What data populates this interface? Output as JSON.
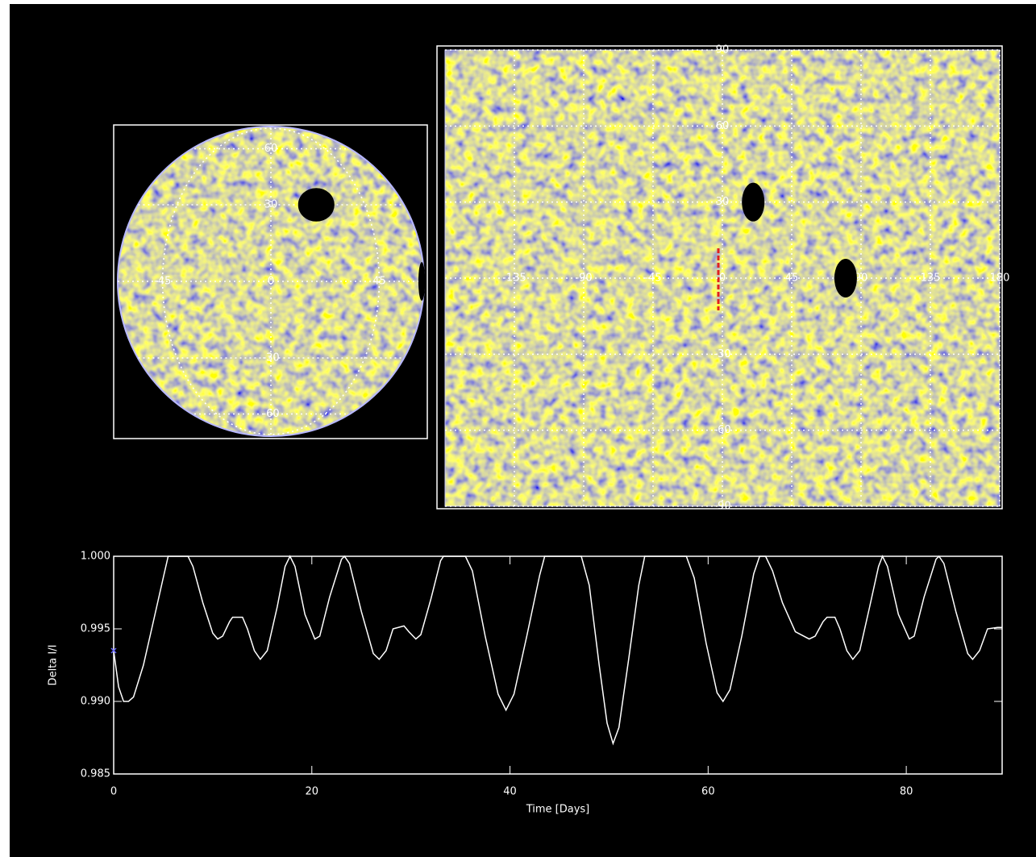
{
  "chart_data": [
    {
      "type": "globe",
      "lat_ticks": [
        60,
        30,
        0,
        -30,
        -60
      ],
      "lon_ticks": [
        -45,
        0,
        45
      ],
      "spots": {
        "lon": [
          20,
          80
        ],
        "lat": [
          30,
          0
        ]
      }
    },
    {
      "type": "map",
      "lon_ticks": [
        -135,
        -90,
        -45,
        0,
        45,
        90,
        135,
        180
      ],
      "lat_ticks": [
        90,
        60,
        30,
        -30,
        -60,
        -90
      ],
      "xlim": [
        -180,
        180
      ],
      "ylim": [
        -90,
        90
      ],
      "spots": {
        "lon": [
          20,
          80
        ],
        "lat": [
          30,
          0
        ]
      }
    },
    {
      "type": "line",
      "xlabel": "Time [Days]",
      "ylabel": "Delta I/I",
      "xlim": [
        0,
        90
      ],
      "ylim": [
        0.985,
        1.0
      ],
      "xticks": [
        0,
        20,
        40,
        60,
        80
      ],
      "yticks": [
        {
          "value": 1.0,
          "label": "1.000"
        },
        {
          "value": 0.995,
          "label": "0.995"
        },
        {
          "value": 0.99,
          "label": "0.990"
        },
        {
          "value": 0.985,
          "label": "0.985"
        }
      ],
      "color": "#ffffff",
      "marker": {
        "x": 0,
        "value": 0.9935,
        "color": "#6a6aff"
      },
      "x": [
        0,
        0.5,
        1,
        1.5,
        2,
        3,
        4,
        5,
        5.5,
        7.5,
        8,
        9,
        10,
        10.5,
        11,
        11.7,
        12,
        13,
        13.5,
        14.2,
        14.8,
        15.5,
        16.5,
        17.3,
        17.8,
        18.3,
        19.3,
        20.3,
        20.8,
        21.8,
        23,
        23.3,
        23.8,
        25,
        26.2,
        26.8,
        27.5,
        28.2,
        29.3,
        29.8,
        30.5,
        31,
        32,
        33,
        33.3,
        35.5,
        36.2,
        37.5,
        38.8,
        39.6,
        40.4,
        41.7,
        43,
        43.5,
        47.2,
        48,
        49,
        49.8,
        50.4,
        51,
        52,
        53,
        53.6,
        57.8,
        58.6,
        59.8,
        60.9,
        61.5,
        62.2,
        63.4,
        64.6,
        65.2,
        65.8,
        66.5,
        67.5,
        68.8,
        70.2,
        70.8,
        71.6,
        72,
        72.8,
        73.3,
        74,
        74.6,
        75.3,
        76.3,
        77.2,
        77.6,
        78.1,
        79.2,
        80.3,
        80.8,
        81.8,
        83,
        83.3,
        83.8,
        85,
        86.2,
        86.7,
        87.4,
        88.2,
        89.2,
        89.7
      ],
      "values": [
        0.9935,
        0.991,
        0.99,
        0.99,
        0.9903,
        0.9925,
        0.9955,
        0.9985,
        1.0,
        1.0,
        0.9993,
        0.9968,
        0.9947,
        0.9943,
        0.9945,
        0.9955,
        0.9958,
        0.9958,
        0.995,
        0.9935,
        0.9929,
        0.9935,
        0.9965,
        0.9993,
        1.0,
        0.9993,
        0.996,
        0.9943,
        0.9945,
        0.9972,
        0.9998,
        1.0,
        0.9995,
        0.9962,
        0.9933,
        0.9929,
        0.9935,
        0.995,
        0.9952,
        0.9948,
        0.9943,
        0.9946,
        0.997,
        0.9997,
        1.0,
        1.0,
        0.999,
        0.9945,
        0.9905,
        0.9894,
        0.9905,
        0.9945,
        0.9987,
        1.0,
        1.0,
        0.998,
        0.9925,
        0.9885,
        0.9871,
        0.9882,
        0.993,
        0.998,
        1.0,
        1.0,
        0.9985,
        0.994,
        0.9906,
        0.99,
        0.9908,
        0.9945,
        0.9988,
        1.0,
        1.0,
        0.999,
        0.9968,
        0.9948,
        0.9943,
        0.9945,
        0.9955,
        0.9958,
        0.9958,
        0.995,
        0.9935,
        0.9929,
        0.9935,
        0.9965,
        0.9993,
        1.0,
        0.9993,
        0.996,
        0.9943,
        0.9945,
        0.9972,
        0.9998,
        1.0,
        0.9995,
        0.9962,
        0.9933,
        0.9929,
        0.9935,
        0.995,
        0.9951,
        0.9951
      ]
    }
  ]
}
